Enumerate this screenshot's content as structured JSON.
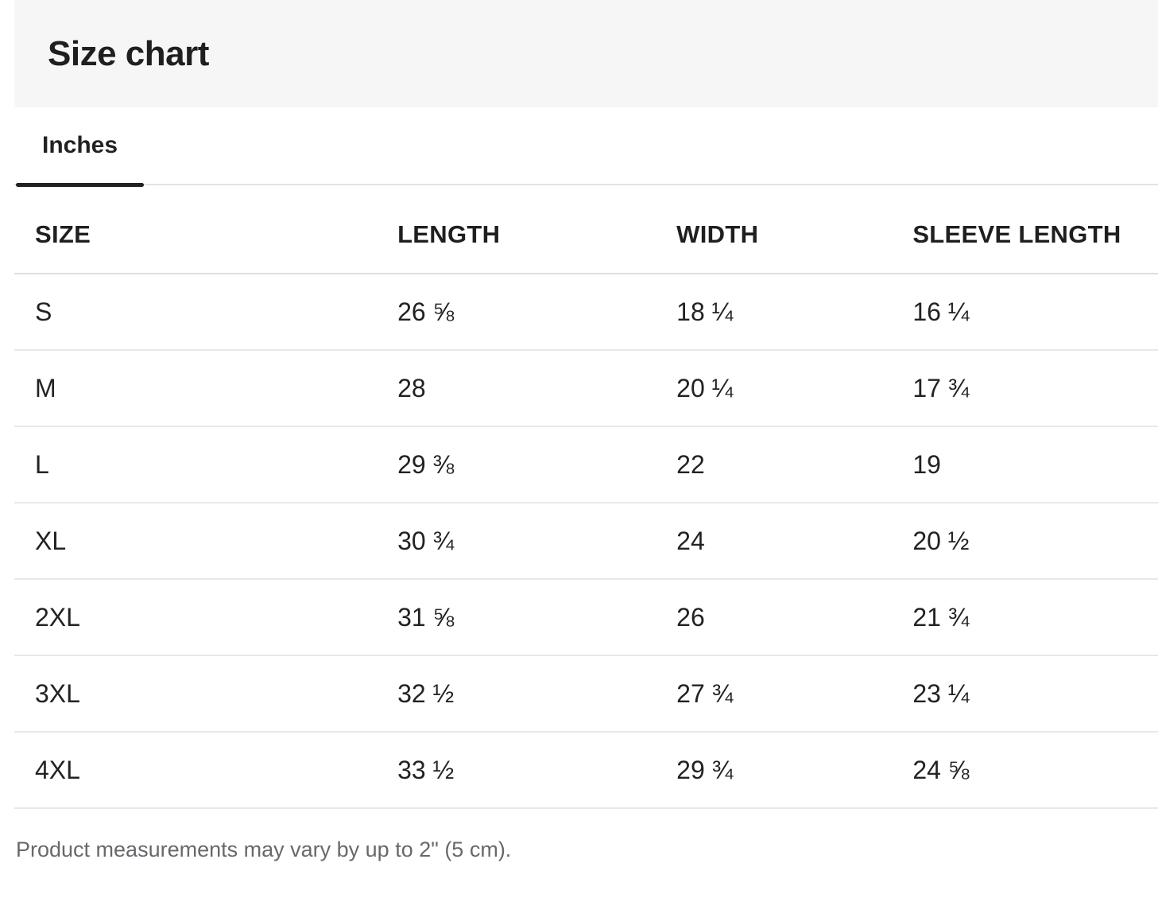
{
  "header": {
    "title": "Size chart"
  },
  "tabs": {
    "active_label": "Inches"
  },
  "table": {
    "columns": [
      "SIZE",
      "LENGTH",
      "WIDTH",
      "SLEEVE LENGTH"
    ],
    "rows": [
      {
        "size": "S",
        "length": "26 ⅝",
        "width": "18 ¼",
        "sleeve": "16 ¼"
      },
      {
        "size": "M",
        "length": "28",
        "width": "20 ¼",
        "sleeve": "17 ¾"
      },
      {
        "size": "L",
        "length": "29 ⅜",
        "width": "22",
        "sleeve": "19"
      },
      {
        "size": "XL",
        "length": "30 ¾",
        "width": "24",
        "sleeve": "20 ½"
      },
      {
        "size": "2XL",
        "length": "31 ⅝",
        "width": "26",
        "sleeve": "21 ¾"
      },
      {
        "size": "3XL",
        "length": "32 ½",
        "width": "27 ¾",
        "sleeve": "23 ¼"
      },
      {
        "size": "4XL",
        "length": "33 ½",
        "width": "29 ¾",
        "sleeve": "24 ⅝"
      }
    ]
  },
  "footer": {
    "note": "Product measurements may vary by up to 2\" (5 cm)."
  },
  "colors": {
    "title_band_bg": "#f6f6f6",
    "text": "#222222",
    "tab_active_underline": "#222222",
    "tab_rule": "#e3e3e3",
    "row_divider": "#e8e8e8",
    "muted_text": "#66696c"
  }
}
